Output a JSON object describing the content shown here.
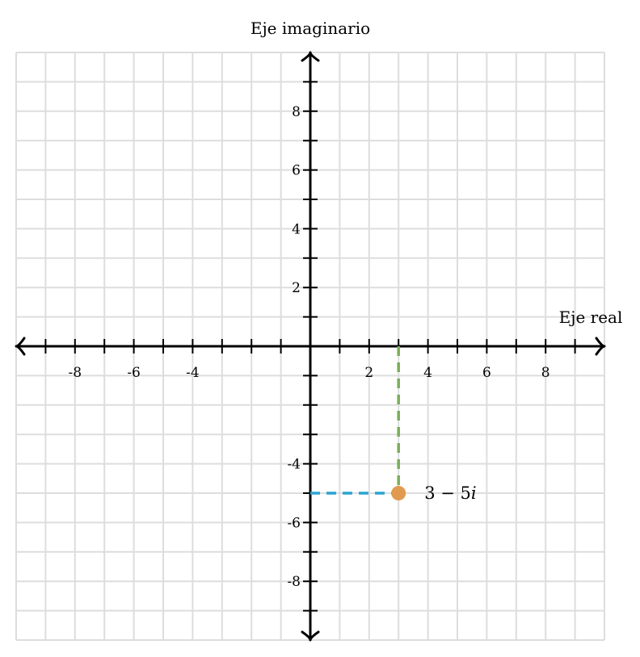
{
  "chart_data": {
    "type": "scatter",
    "xlabel": "Eje real",
    "ylabel": "Eje imaginario",
    "xlim": [
      -10,
      10
    ],
    "ylim": [
      -10,
      10
    ],
    "grid": true,
    "x_tick_labels": [
      {
        "value": -8,
        "label": "-8"
      },
      {
        "value": -6,
        "label": "-6"
      },
      {
        "value": -4,
        "label": "-4"
      },
      {
        "value": 2,
        "label": "2"
      },
      {
        "value": 4,
        "label": "4"
      },
      {
        "value": 6,
        "label": "6"
      },
      {
        "value": 8,
        "label": "8"
      }
    ],
    "y_tick_labels": [
      {
        "value": 8,
        "label": "8"
      },
      {
        "value": 6,
        "label": "6"
      },
      {
        "value": 4,
        "label": "4"
      },
      {
        "value": 2,
        "label": "2"
      },
      {
        "value": -4,
        "label": "-4"
      },
      {
        "value": -6,
        "label": "-6"
      },
      {
        "value": -8,
        "label": "-8"
      }
    ],
    "points": [
      {
        "x": 3,
        "y": -5,
        "label_main": "3 − 5",
        "label_italic": "i",
        "color": "#e09b50"
      }
    ],
    "projection_colors": {
      "vertical": "#7aad5a",
      "horizontal": "#2aa5d0"
    },
    "colors": {
      "grid": "#dddddd",
      "axis": "#000000"
    }
  }
}
